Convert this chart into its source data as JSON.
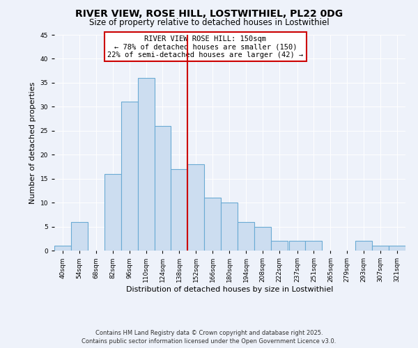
{
  "title": "RIVER VIEW, ROSE HILL, LOSTWITHIEL, PL22 0DG",
  "subtitle": "Size of property relative to detached houses in Lostwithiel",
  "xlabel": "Distribution of detached houses by size in Lostwithiel",
  "ylabel": "Number of detached properties",
  "bin_labels": [
    "40sqm",
    "54sqm",
    "68sqm",
    "82sqm",
    "96sqm",
    "110sqm",
    "124sqm",
    "138sqm",
    "152sqm",
    "166sqm",
    "180sqm",
    "194sqm",
    "208sqm",
    "222sqm",
    "237sqm",
    "251sqm",
    "265sqm",
    "279sqm",
    "293sqm",
    "307sqm",
    "321sqm"
  ],
  "bin_edges": [
    40,
    54,
    68,
    82,
    96,
    110,
    124,
    138,
    152,
    166,
    180,
    194,
    208,
    222,
    237,
    251,
    265,
    279,
    293,
    307,
    321
  ],
  "counts": [
    1,
    6,
    0,
    16,
    31,
    36,
    26,
    17,
    18,
    11,
    10,
    6,
    5,
    2,
    2,
    2,
    0,
    0,
    2,
    1,
    1
  ],
  "bar_color": "#ccddf0",
  "bar_edge_color": "#6aaad4",
  "vline_x": 152,
  "vline_color": "#cc0000",
  "annotation_title": "RIVER VIEW ROSE HILL: 150sqm",
  "annotation_line1": "← 78% of detached houses are smaller (150)",
  "annotation_line2": "22% of semi-detached houses are larger (42) →",
  "annotation_box_color": "#cc0000",
  "ylim": [
    0,
    45
  ],
  "yticks": [
    0,
    5,
    10,
    15,
    20,
    25,
    30,
    35,
    40,
    45
  ],
  "background_color": "#eef2fa",
  "footer1": "Contains HM Land Registry data © Crown copyright and database right 2025.",
  "footer2": "Contains public sector information licensed under the Open Government Licence v3.0.",
  "title_fontsize": 10,
  "subtitle_fontsize": 8.5,
  "axis_label_fontsize": 8,
  "tick_fontsize": 6.5,
  "annotation_fontsize": 7.5,
  "footer_fontsize": 6
}
